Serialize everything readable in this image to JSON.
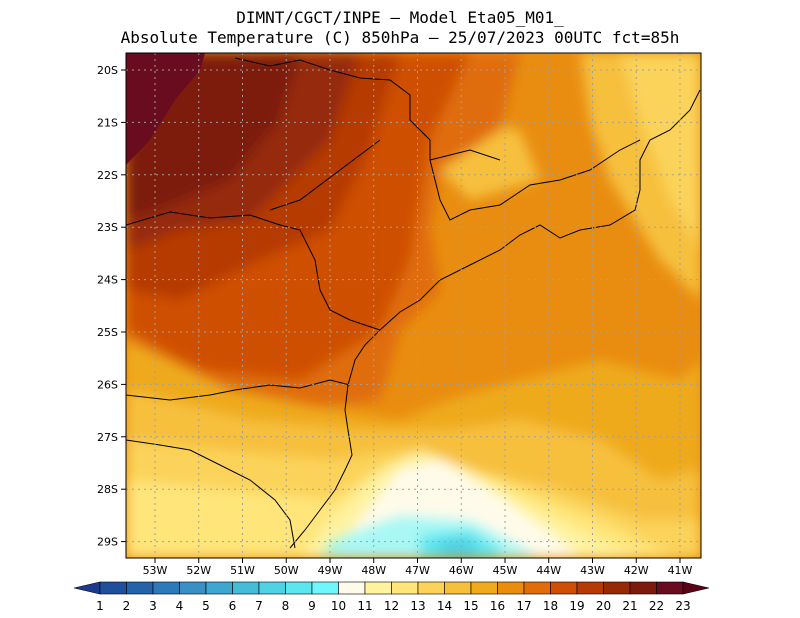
{
  "header": {
    "line1": "DIMNT/CGCT/INPE –  Model Eta05_M01_",
    "line2": "Absolute Temperature (C) 850hPa –  25/07/2023 00UTC fct=85h"
  },
  "map": {
    "lat_labels": [
      "20S",
      "21S",
      "22S",
      "23S",
      "24S",
      "25S",
      "26S",
      "27S",
      "28S",
      "29S"
    ],
    "lon_labels": [
      "53W",
      "52W",
      "51W",
      "50W",
      "49W",
      "48W",
      "47W",
      "46W",
      "45W",
      "44W",
      "43W",
      "42W",
      "41W"
    ]
  },
  "colorbar": {
    "labels": [
      "1",
      "2",
      "3",
      "4",
      "5",
      "6",
      "7",
      "8",
      "9",
      "10",
      "11",
      "12",
      "13",
      "14",
      "15",
      "16",
      "17",
      "18",
      "19",
      "20",
      "21",
      "22",
      "23"
    ],
    "colors": [
      "#1b3a8f",
      "#1f4e9a",
      "#2563a8",
      "#2e79b7",
      "#3a8fc4",
      "#3fa6cf",
      "#45bdd9",
      "#4fd2e4",
      "#5ee6ef",
      "#6ff7fb",
      "#fffbea",
      "#fff3a0",
      "#ffe57a",
      "#fbd35a",
      "#f6c03c",
      "#efaa1d",
      "#e98d10",
      "#e06d0a",
      "#cf4f06",
      "#b63a05",
      "#962a07",
      "#7d1a0e",
      "#6a0c1f",
      "#5a0318"
    ]
  }
}
